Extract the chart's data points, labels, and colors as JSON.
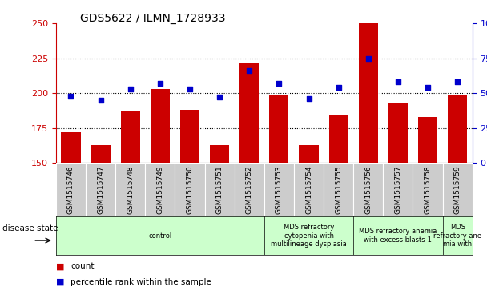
{
  "title": "GDS5622 / ILMN_1728933",
  "samples": [
    "GSM1515746",
    "GSM1515747",
    "GSM1515748",
    "GSM1515749",
    "GSM1515750",
    "GSM1515751",
    "GSM1515752",
    "GSM1515753",
    "GSM1515754",
    "GSM1515755",
    "GSM1515756",
    "GSM1515757",
    "GSM1515758",
    "GSM1515759"
  ],
  "counts": [
    172,
    163,
    187,
    203,
    188,
    163,
    222,
    199,
    163,
    184,
    250,
    193,
    183,
    199
  ],
  "percentiles": [
    48,
    45,
    53,
    57,
    53,
    47,
    66,
    57,
    46,
    54,
    75,
    58,
    54,
    58
  ],
  "ylim_left": [
    150,
    250
  ],
  "ylim_right": [
    0,
    100
  ],
  "yticks_left": [
    150,
    175,
    200,
    225,
    250
  ],
  "yticks_right": [
    0,
    25,
    50,
    75,
    100
  ],
  "bar_color": "#cc0000",
  "dot_color": "#0000cc",
  "grid_color": "#000000",
  "bg_color": "#ffffff",
  "sample_area_color": "#cccccc",
  "disease_area_color": "#ccffcc",
  "disease_label": "disease state",
  "legend_count": "count",
  "legend_percentile": "percentile rank within the sample",
  "groups": [
    {
      "label": "control",
      "start": 0,
      "end": 7
    },
    {
      "label": "MDS refractory\ncytopenia with\nmultilineage dysplasia",
      "start": 7,
      "end": 10
    },
    {
      "label": "MDS refractory anemia\nwith excess blasts-1",
      "start": 10,
      "end": 13
    },
    {
      "label": "MDS\nrefractory ane\nmia with",
      "start": 13,
      "end": 14
    }
  ]
}
